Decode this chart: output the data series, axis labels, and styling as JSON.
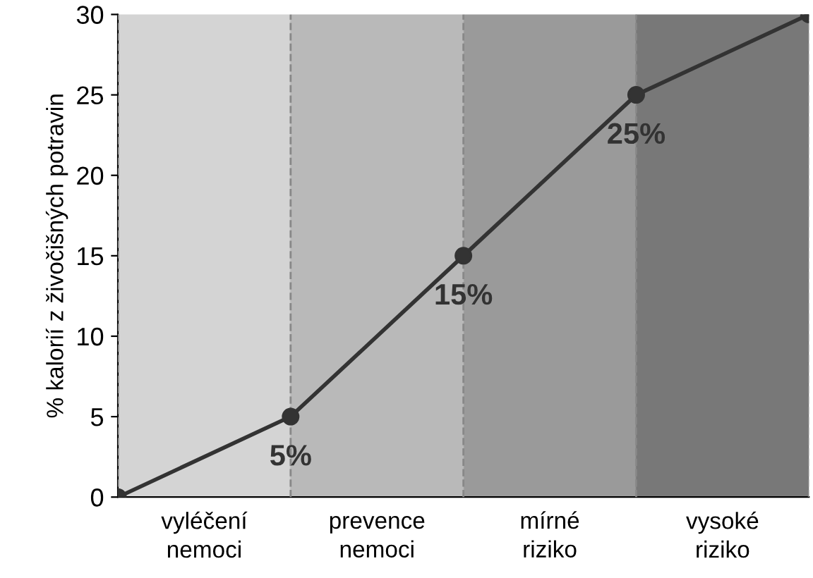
{
  "chart_data": {
    "type": "line",
    "ylabel": "% kalorií z živočišných potravin",
    "categories": [
      null,
      null,
      null,
      null,
      null
    ],
    "series": [
      {
        "color": "#333333",
        "values": [
          0,
          5,
          15,
          25,
          30
        ]
      }
    ],
    "marker": "circle",
    "ylim": [
      0,
      30
    ],
    "yticks": [
      0,
      5,
      10,
      15,
      20,
      25,
      30
    ],
    "tick_labels": "y",
    "grid": "x",
    "annotations": [
      {
        "text": "5%",
        "y": 5
      },
      {
        "text": "15%",
        "y": 15
      },
      {
        "text": "25%",
        "y": 25
      },
      "vyléčení\nnemoci",
      "prevence\nnemoci",
      "mírné\nriziko",
      "vysoké\nriziko"
    ]
  }
}
